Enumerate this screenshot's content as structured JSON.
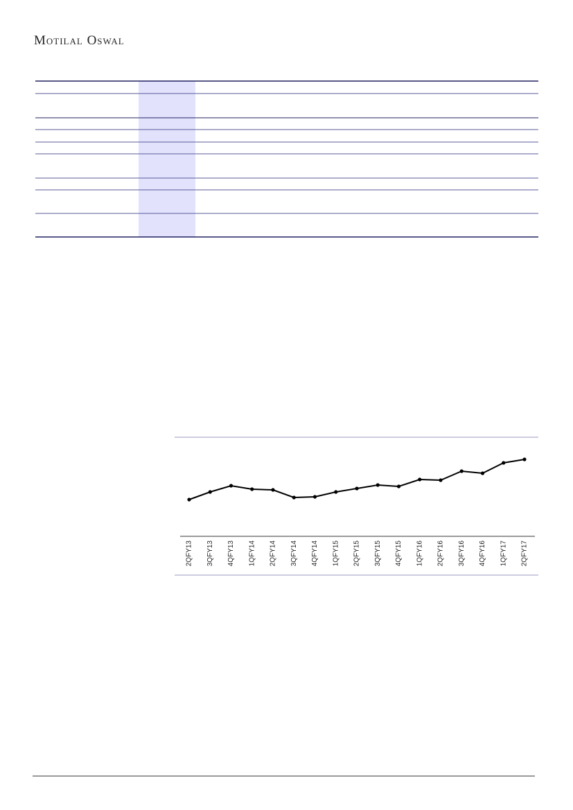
{
  "header": {
    "brand": "Motilal Oswal"
  },
  "chart_data": {
    "type": "line",
    "categories": [
      "2QFY13",
      "3QFY13",
      "4QFY13",
      "1QFY14",
      "2QFY14",
      "3QFY14",
      "4QFY14",
      "1QFY15",
      "2QFY15",
      "3QFY15",
      "4QFY15",
      "1QFY16",
      "2QFY16",
      "3QFY16",
      "4QFY16",
      "1QFY17",
      "2QFY17"
    ],
    "values": [
      53,
      64,
      73,
      68,
      67,
      56,
      57,
      64,
      69,
      74,
      72,
      82,
      81,
      94,
      91,
      106,
      111
    ],
    "color": "#000000",
    "ylim": [
      0,
      143
    ]
  }
}
